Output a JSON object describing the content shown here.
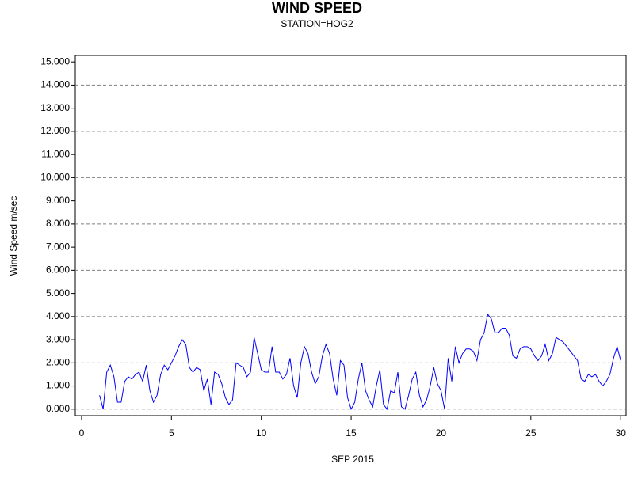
{
  "chart_data": {
    "type": "line",
    "title": "WIND SPEED",
    "subtitle": "STATION=HOG2",
    "x_label": "SEP 2015",
    "y_label": "Wind Speed m/sec",
    "color": "#0000ff",
    "grid": true,
    "xlim": [
      -0.35,
      30.3
    ],
    "ylim": [
      -0.28,
      15.28
    ],
    "xticks": [
      0,
      5,
      10,
      15,
      20,
      25,
      30
    ],
    "yticks": [
      {
        "value": 0,
        "label": "0.000"
      },
      {
        "value": 1,
        "label": "1.000"
      },
      {
        "value": 2,
        "label": "2.000"
      },
      {
        "value": 3,
        "label": "3.000"
      },
      {
        "value": 4,
        "label": "4.000"
      },
      {
        "value": 5,
        "label": "5.000"
      },
      {
        "value": 6,
        "label": "6.000"
      },
      {
        "value": 7,
        "label": "7.000"
      },
      {
        "value": 8,
        "label": "8.000"
      },
      {
        "value": 9,
        "label": "9.000"
      },
      {
        "value": 10,
        "label": "10.000"
      },
      {
        "value": 11,
        "label": "11.000"
      },
      {
        "value": 12,
        "label": "12.000"
      },
      {
        "value": 13,
        "label": "13.000"
      },
      {
        "value": 14,
        "label": "14.000"
      },
      {
        "value": 15,
        "label": "15.000"
      }
    ],
    "x": [
      1.0,
      1.2,
      1.4,
      1.6,
      1.8,
      2.0,
      2.2,
      2.4,
      2.6,
      2.8,
      3.0,
      3.2,
      3.4,
      3.6,
      3.8,
      4.0,
      4.2,
      4.4,
      4.6,
      4.8,
      5.0,
      5.2,
      5.4,
      5.6,
      5.8,
      6.0,
      6.2,
      6.4,
      6.6,
      6.8,
      7.0,
      7.2,
      7.4,
      7.6,
      7.8,
      8.0,
      8.2,
      8.4,
      8.6,
      8.8,
      9.0,
      9.2,
      9.4,
      9.6,
      9.8,
      10.0,
      10.2,
      10.4,
      10.6,
      10.8,
      11.0,
      11.2,
      11.4,
      11.6,
      11.8,
      12.0,
      12.2,
      12.4,
      12.6,
      12.8,
      13.0,
      13.2,
      13.4,
      13.6,
      13.8,
      14.0,
      14.2,
      14.4,
      14.6,
      14.8,
      15.0,
      15.2,
      15.4,
      15.6,
      15.8,
      16.0,
      16.2,
      16.4,
      16.6,
      16.8,
      17.0,
      17.2,
      17.4,
      17.6,
      17.8,
      18.0,
      18.2,
      18.4,
      18.6,
      18.8,
      19.0,
      19.2,
      19.4,
      19.6,
      19.8,
      20.0,
      20.2,
      20.4,
      20.6,
      20.8,
      21.0,
      21.2,
      21.4,
      21.6,
      21.8,
      22.0,
      22.2,
      22.4,
      22.6,
      22.8,
      23.0,
      23.2,
      23.4,
      23.6,
      23.8,
      24.0,
      24.2,
      24.4,
      24.6,
      24.8,
      25.0,
      25.2,
      25.4,
      25.6,
      25.8,
      26.0,
      26.2,
      26.4,
      26.6,
      26.8,
      27.0,
      27.2,
      27.4,
      27.6,
      27.8,
      28.0,
      28.2,
      28.4,
      28.6,
      28.8,
      29.0,
      29.2,
      29.4,
      29.6,
      29.8,
      30.0
    ],
    "values": [
      0.6,
      0.0,
      1.6,
      1.9,
      1.4,
      0.3,
      0.3,
      1.2,
      1.4,
      1.3,
      1.5,
      1.6,
      1.2,
      1.9,
      0.8,
      0.3,
      0.6,
      1.5,
      1.9,
      1.7,
      2.0,
      2.3,
      2.7,
      3.0,
      2.8,
      1.8,
      1.6,
      1.8,
      1.7,
      0.8,
      1.3,
      0.2,
      1.6,
      1.5,
      1.1,
      0.5,
      0.2,
      0.4,
      2.0,
      1.9,
      1.8,
      1.4,
      1.6,
      3.1,
      2.4,
      1.7,
      1.6,
      1.6,
      2.7,
      1.6,
      1.6,
      1.3,
      1.5,
      2.2,
      1.0,
      0.5,
      2.0,
      2.7,
      2.4,
      1.6,
      1.1,
      1.4,
      2.3,
      2.8,
      2.4,
      1.3,
      0.6,
      2.1,
      1.9,
      0.5,
      0.0,
      0.3,
      1.3,
      2.0,
      0.8,
      0.4,
      0.1,
      1.0,
      1.7,
      0.2,
      0.0,
      0.8,
      0.7,
      1.6,
      0.1,
      0.0,
      0.6,
      1.3,
      1.6,
      0.6,
      0.1,
      0.4,
      1.0,
      1.8,
      1.1,
      0.8,
      0.0,
      2.2,
      1.2,
      2.7,
      2.0,
      2.4,
      2.6,
      2.6,
      2.5,
      2.1,
      3.0,
      3.3,
      4.1,
      3.9,
      3.3,
      3.3,
      3.5,
      3.5,
      3.2,
      2.3,
      2.2,
      2.6,
      2.7,
      2.7,
      2.6,
      2.3,
      2.1,
      2.3,
      2.8,
      2.1,
      2.4,
      3.1,
      3.0,
      2.9,
      2.7,
      2.5,
      2.3,
      2.1,
      1.3,
      1.2,
      1.5,
      1.4,
      1.5,
      1.2,
      1.0,
      1.2,
      1.5,
      2.2,
      2.7,
      2.1
    ]
  }
}
